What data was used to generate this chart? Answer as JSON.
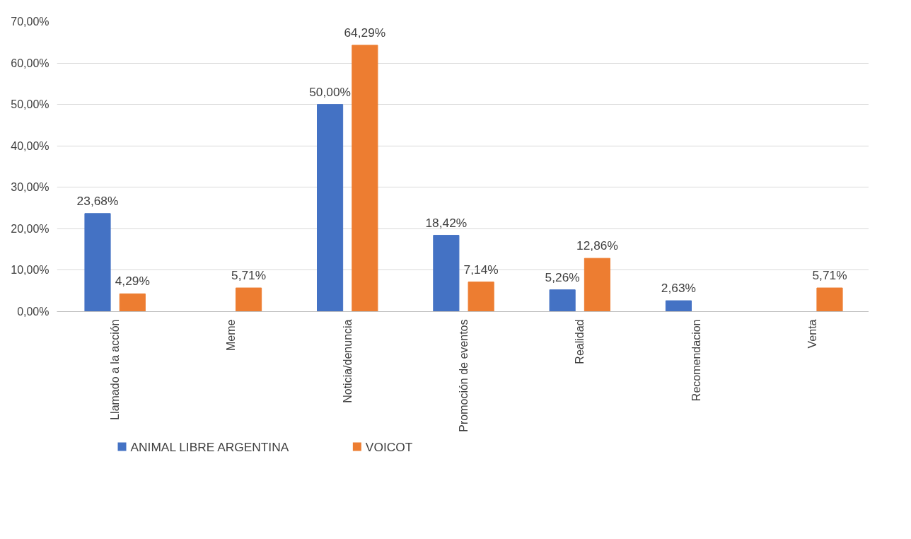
{
  "chart_data": {
    "type": "bar",
    "categories": [
      "Llamado a la acción",
      "Meme",
      "Noticia/denuncia",
      "Promoción de eventos",
      "Realidad",
      "Recomendacion",
      "Venta"
    ],
    "series": [
      {
        "name": "ANIMAL LIBRE ARGENTINA",
        "color": "#4472c4",
        "values": [
          23.68,
          null,
          50.0,
          18.42,
          5.26,
          2.63,
          null
        ],
        "value_labels": [
          "23,68%",
          null,
          "50,00%",
          "18,42%",
          "5,26%",
          "2,63%",
          null
        ]
      },
      {
        "name": "VOICOT",
        "color": "#ed7d31",
        "values": [
          4.29,
          5.71,
          64.29,
          7.14,
          12.86,
          null,
          5.71
        ],
        "value_labels": [
          "4,29%",
          "5,71%",
          "64,29%",
          "7,14%",
          "12,86%",
          null,
          "5,71%"
        ]
      }
    ],
    "ylim": [
      0,
      70
    ],
    "yticks": [
      {
        "value": 0,
        "label": "0,00%"
      },
      {
        "value": 10,
        "label": "10,00%"
      },
      {
        "value": 20,
        "label": "20,00%"
      },
      {
        "value": 30,
        "label": "30,00%"
      },
      {
        "value": 40,
        "label": "40,00%"
      },
      {
        "value": 50,
        "label": "50,00%"
      },
      {
        "value": 60,
        "label": "60,00%"
      },
      {
        "value": 70,
        "label": "70,00%"
      }
    ],
    "grid": "y",
    "legend": "bottom"
  }
}
